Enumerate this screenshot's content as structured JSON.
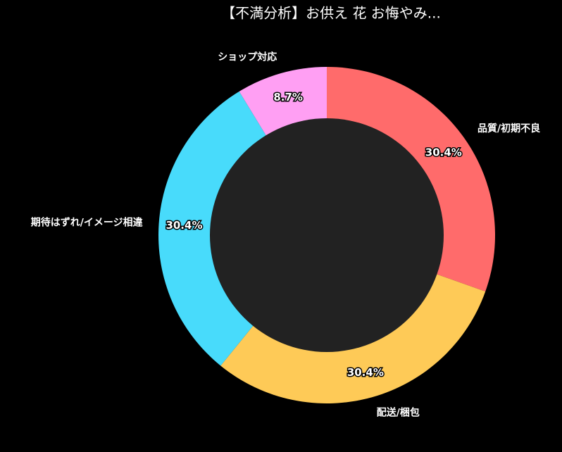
{
  "chart_data": {
    "type": "pie",
    "title": "【不満分析】お供え 花 お悔やみ...",
    "categories": [
      "品質/初期不良",
      "配送/梱包",
      "期待はずれ/イメージ相違",
      "ショップ対応"
    ],
    "values": [
      30.4,
      30.4,
      30.4,
      8.7
    ],
    "value_labels": [
      "30.4%",
      "30.4%",
      "30.4%",
      "8.7%"
    ],
    "colors": [
      "#ff6b6b",
      "#feca57",
      "#48dbfb",
      "#ff9ff3"
    ],
    "hole_color": "#222222"
  }
}
